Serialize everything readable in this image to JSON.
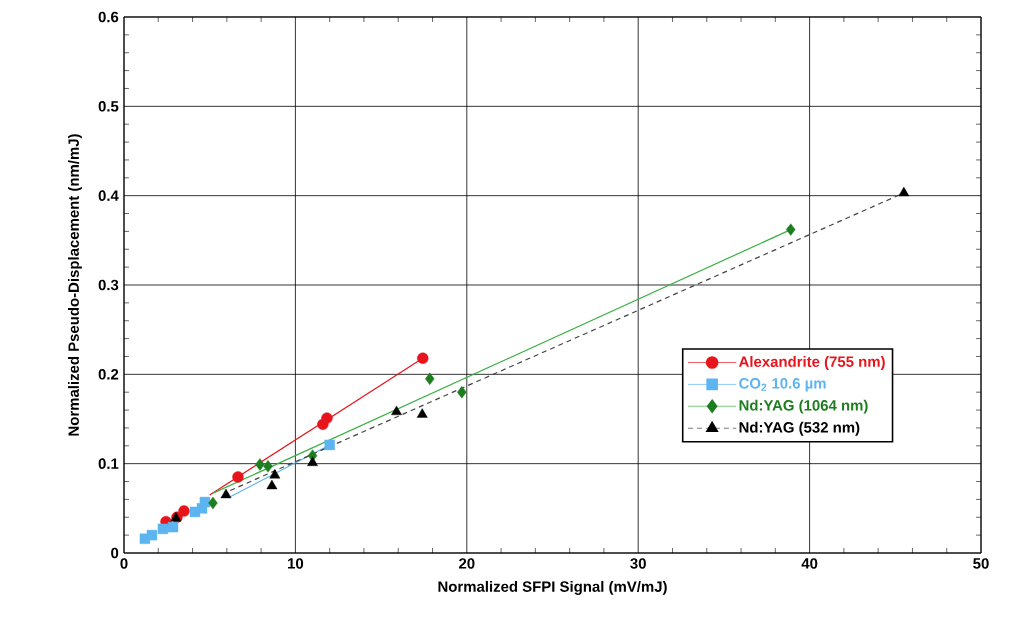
{
  "chart_data": {
    "type": "scatter",
    "xlabel": "Normalized SFPI Signal (mV/mJ)",
    "ylabel": "Normalized Pseudo-Displacement (nm/mJ)",
    "xlim": [
      0,
      50
    ],
    "ylim": [
      0,
      0.6
    ],
    "xticks": [
      0,
      10,
      20,
      30,
      40,
      50
    ],
    "yticks": [
      0,
      0.1,
      0.2,
      0.3,
      0.4,
      0.5,
      0.6
    ],
    "grid": true,
    "legend": "right",
    "series": [
      {
        "name": "Alexandrite (755 nm)",
        "marker": "circle",
        "color": "#e8141c",
        "x": [
          2.45,
          3.09,
          3.5,
          6.65,
          11.6,
          11.84,
          17.43
        ],
        "values": [
          0.035,
          0.04,
          0.047,
          0.085,
          0.144,
          0.151,
          0.218
        ]
      },
      {
        "type": "line",
        "color": "#e8141c",
        "line_style": "solid",
        "x": [
          5.0,
          17.43
        ],
        "values": [
          0.065,
          0.218
        ]
      },
      {
        "name": "CO$_{2}$ 10.6 µm",
        "marker": "square",
        "color": "#5cb4f0",
        "x": [
          1.22,
          1.63,
          2.27,
          2.86,
          4.14,
          4.55,
          4.72,
          12.0
        ],
        "values": [
          0.016,
          0.02,
          0.027,
          0.029,
          0.046,
          0.05,
          0.057,
          0.121
        ]
      },
      {
        "type": "line",
        "color": "#5cb4f0",
        "line_style": "solid",
        "x": [
          6.2,
          12.0
        ],
        "values": [
          0.063,
          0.121
        ]
      },
      {
        "name": "Nd:YAG (1064 nm)",
        "marker": "diamond",
        "color": "#1e7d1e",
        "x": [
          5.19,
          7.93,
          8.4,
          11.0,
          17.84,
          19.71,
          38.9
        ],
        "values": [
          0.056,
          0.099,
          0.097,
          0.109,
          0.195,
          0.18,
          0.362
        ]
      },
      {
        "type": "line",
        "color": "#3cb043",
        "line_style": "solid",
        "x": [
          5.2,
          38.9
        ],
        "values": [
          0.067,
          0.362
        ]
      },
      {
        "name": "Nd:YAG (532 nm)",
        "marker": "triangle",
        "color": "#000000",
        "x": [
          3.03,
          5.95,
          8.63,
          8.8,
          11.0,
          15.9,
          17.4,
          45.5
        ],
        "values": [
          0.039,
          0.065,
          0.075,
          0.087,
          0.101,
          0.158,
          0.155,
          0.403
        ]
      },
      {
        "type": "line",
        "color": "#444444",
        "line_style": "dashed",
        "x": [
          6.2,
          45.5
        ],
        "values": [
          0.07,
          0.403
        ]
      }
    ]
  }
}
